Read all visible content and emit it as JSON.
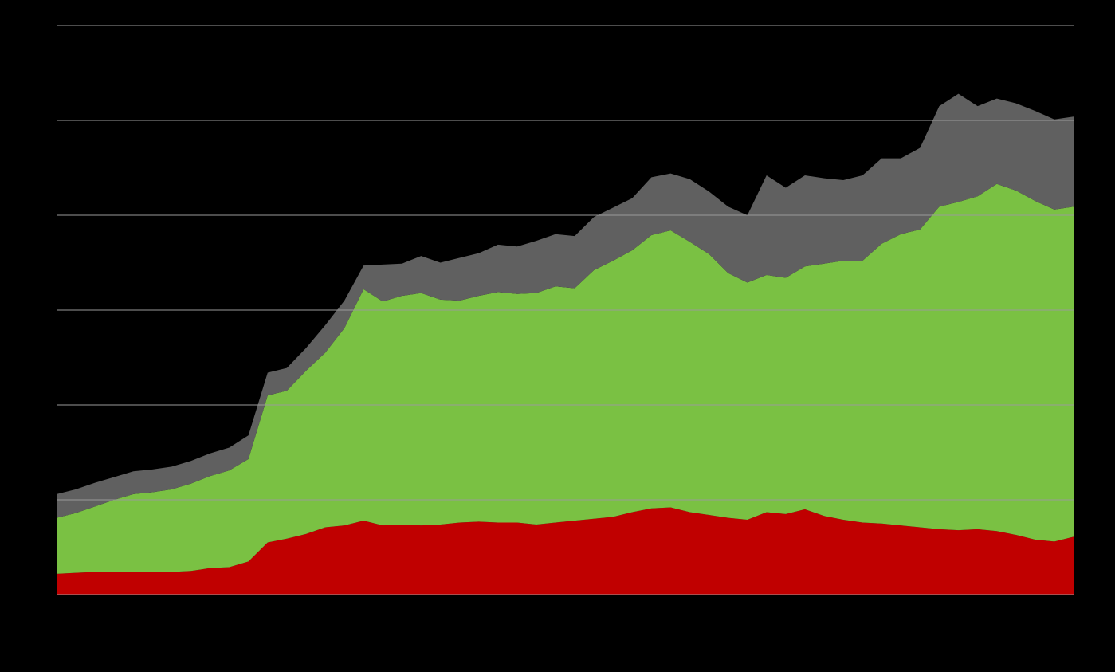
{
  "chart_data": {
    "type": "stacked-area",
    "series": [
      {
        "color": "#c00000",
        "values": [
          2.2,
          2.3,
          2.4,
          2.4,
          2.4,
          2.4,
          2.4,
          2.5,
          2.8,
          2.9,
          3.5,
          5.5,
          5.9,
          6.4,
          7.1,
          7.3,
          7.8,
          7.3,
          7.4,
          7.3,
          7.4,
          7.6,
          7.7,
          7.6,
          7.6,
          7.4,
          7.6,
          7.8,
          8.0,
          8.2,
          8.7,
          9.1,
          9.2,
          8.7,
          8.4,
          8.1,
          7.9,
          8.7,
          8.5,
          9.0,
          8.3,
          7.9,
          7.6,
          7.5,
          7.3,
          7.1,
          6.9,
          6.8,
          6.9,
          6.7,
          6.3,
          5.8,
          5.6,
          6.1
        ]
      },
      {
        "color": "#7ac143",
        "values": [
          5.9,
          6.3,
          6.9,
          7.6,
          8.2,
          8.4,
          8.7,
          9.2,
          9.7,
          10.2,
          10.8,
          15.5,
          15.6,
          17.2,
          18.4,
          20.8,
          24.4,
          23.6,
          24.1,
          24.5,
          23.7,
          23.4,
          23.8,
          24.3,
          24.1,
          24.4,
          24.9,
          24.5,
          26.2,
          27.0,
          27.6,
          28.8,
          29.2,
          28.5,
          27.5,
          25.8,
          25.0,
          25.0,
          24.9,
          25.6,
          26.6,
          27.3,
          27.6,
          29.5,
          30.7,
          31.4,
          34.0,
          34.6,
          35.1,
          36.6,
          36.3,
          35.7,
          35.0,
          34.8
        ]
      },
      {
        "color": "#606060",
        "values": [
          2.5,
          2.5,
          2.5,
          2.4,
          2.4,
          2.4,
          2.4,
          2.4,
          2.4,
          2.4,
          2.5,
          2.4,
          2.4,
          2.4,
          2.9,
          2.9,
          2.5,
          3.9,
          3.4,
          3.9,
          3.9,
          4.5,
          4.5,
          5.0,
          5.0,
          5.5,
          5.5,
          5.5,
          5.6,
          5.6,
          5.5,
          6.1,
          6.0,
          6.6,
          6.6,
          7.0,
          7.1,
          10.5,
          9.5,
          9.6,
          9.0,
          8.5,
          9.0,
          9.0,
          8.0,
          8.6,
          10.6,
          11.4,
          9.5,
          9.0,
          9.2,
          9.5,
          9.5,
          9.5
        ]
      }
    ],
    "ylim": [
      0,
      60
    ],
    "yticks": [
      0,
      10,
      20,
      30,
      40,
      50,
      60
    ],
    "grid": true
  }
}
